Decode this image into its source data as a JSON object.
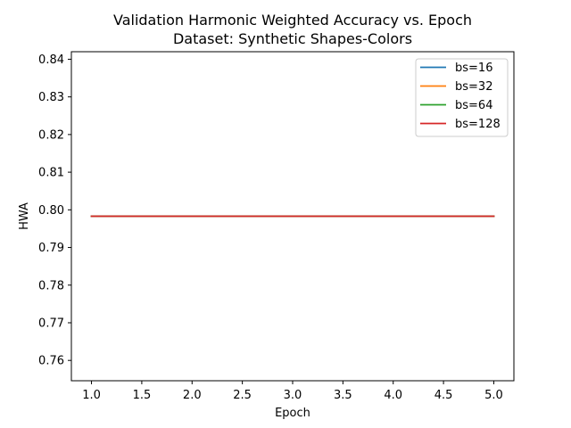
{
  "chart_data": {
    "type": "line",
    "title": "Validation Harmonic Weighted Accuracy vs. Epoch",
    "subtitle": "Dataset: Synthetic Shapes-Colors",
    "xlabel": "Epoch",
    "ylabel": "HWA",
    "xlim": [
      0.8,
      5.2
    ],
    "ylim": [
      0.7546,
      0.842
    ],
    "xticks": [
      1.0,
      1.5,
      2.0,
      2.5,
      3.0,
      3.5,
      4.0,
      4.5,
      5.0
    ],
    "xtick_labels": [
      "1.0",
      "1.5",
      "2.0",
      "2.5",
      "3.0",
      "3.5",
      "4.0",
      "4.5",
      "5.0"
    ],
    "yticks": [
      0.76,
      0.77,
      0.78,
      0.79,
      0.8,
      0.81,
      0.82,
      0.83,
      0.84
    ],
    "ytick_labels": [
      "0.76",
      "0.77",
      "0.78",
      "0.79",
      "0.80",
      "0.81",
      "0.82",
      "0.83",
      "0.84"
    ],
    "grid": false,
    "legend_position": "top-right",
    "x": [
      1,
      2,
      3,
      4,
      5
    ],
    "series": [
      {
        "name": "bs=16",
        "color": "#1f77b4",
        "values": [
          0.7983,
          0.7983,
          0.7983,
          0.7983,
          0.7983
        ]
      },
      {
        "name": "bs=32",
        "color": "#ff7f0e",
        "values": [
          0.7983,
          0.7983,
          0.7983,
          0.7983,
          0.7983
        ]
      },
      {
        "name": "bs=64",
        "color": "#2ca02c",
        "values": [
          0.7983,
          0.7983,
          0.7983,
          0.7983,
          0.7983
        ]
      },
      {
        "name": "bs=128",
        "color": "#d62728",
        "values": [
          0.7983,
          0.7983,
          0.7983,
          0.7983,
          0.7983
        ]
      }
    ]
  }
}
